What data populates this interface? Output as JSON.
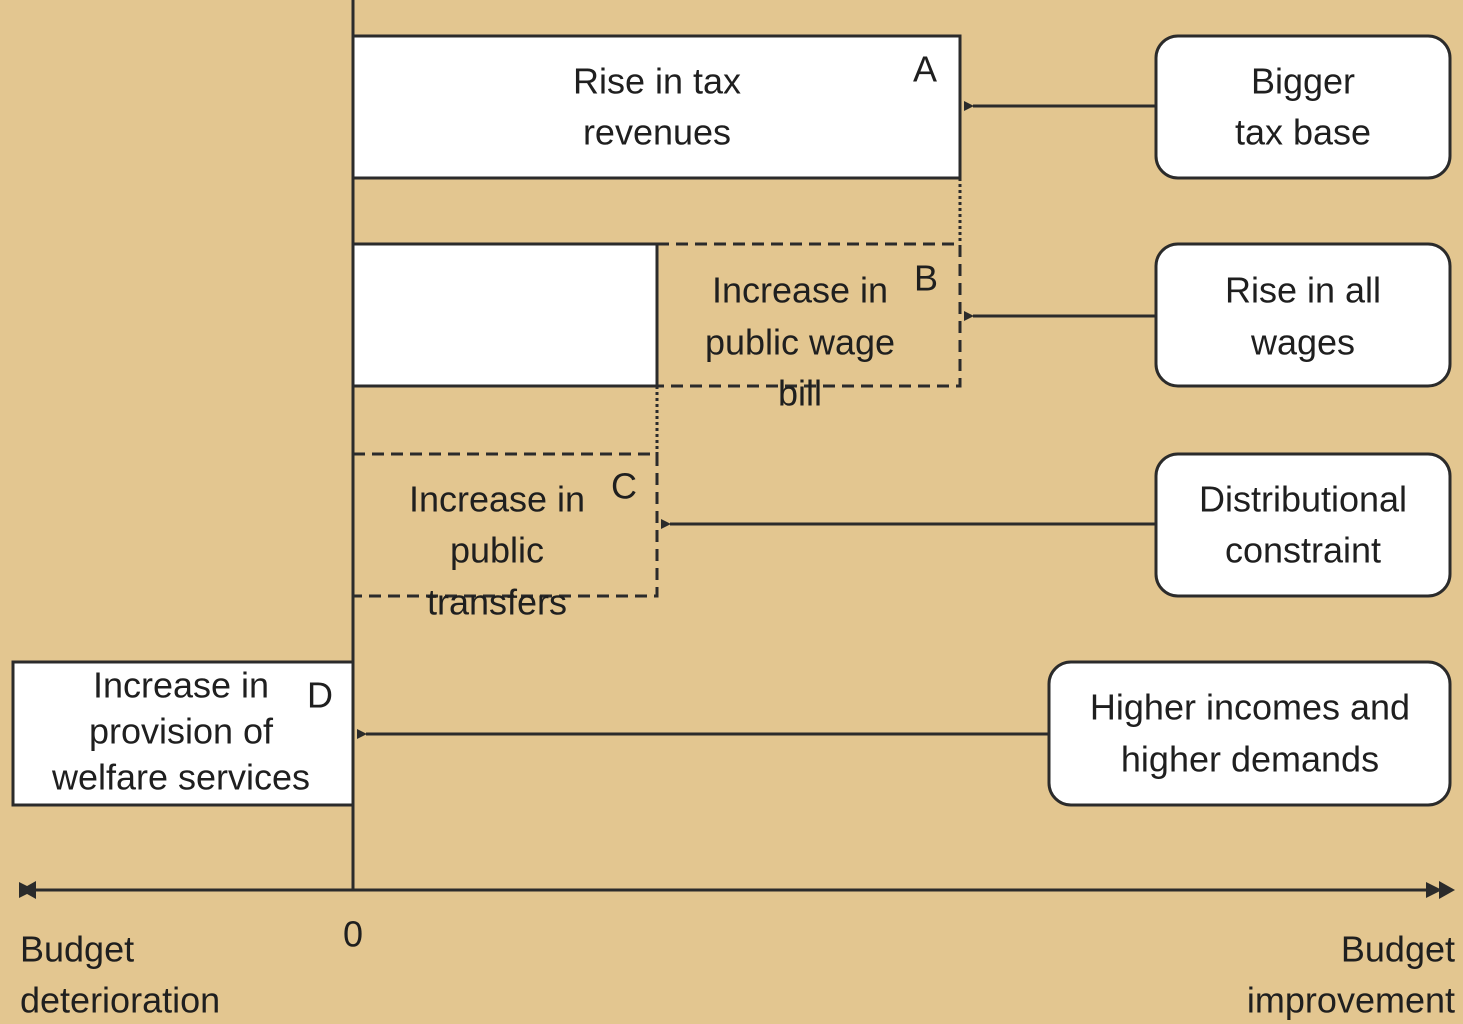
{
  "axis": {
    "origin": "0",
    "left": [
      "Budget",
      "deterioration"
    ],
    "right": [
      "Budget",
      "improvement"
    ]
  },
  "bars": [
    {
      "letter": "A",
      "lines": [
        "Rise in tax",
        "revenues"
      ]
    },
    {
      "letter": "B",
      "lines": [
        "Increase in",
        "public wage",
        "bill"
      ]
    },
    {
      "letter": "C",
      "lines": [
        "Increase in",
        "public",
        "transfers"
      ]
    },
    {
      "letter": "D",
      "lines": [
        "Increase in",
        "provision of",
        "welfare services"
      ]
    }
  ],
  "causes": [
    {
      "lines": [
        "Bigger",
        "tax base"
      ]
    },
    {
      "lines": [
        "Rise in all",
        "wages"
      ]
    },
    {
      "lines": [
        "Distributional",
        "constraint"
      ]
    },
    {
      "lines": [
        "Higher incomes and",
        "higher demands"
      ]
    }
  ]
}
